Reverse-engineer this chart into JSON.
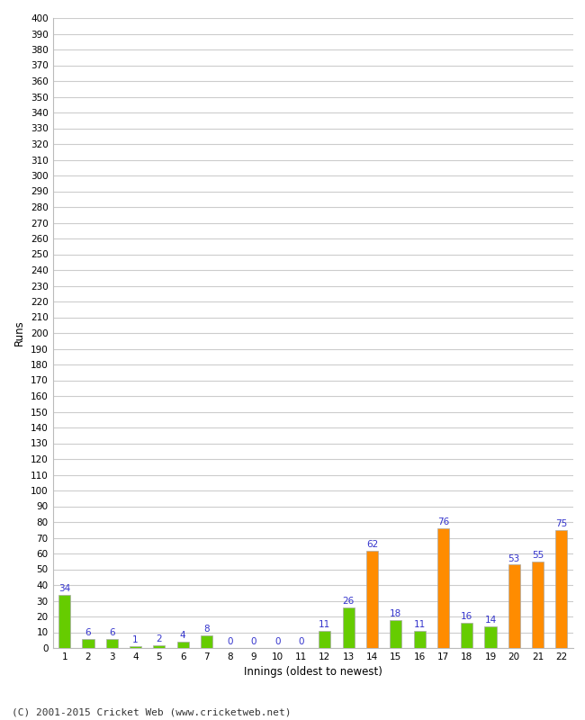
{
  "innings": [
    1,
    2,
    3,
    4,
    5,
    6,
    7,
    8,
    9,
    10,
    11,
    12,
    13,
    14,
    15,
    16,
    17,
    18,
    19,
    20,
    21,
    22
  ],
  "values": [
    34,
    6,
    6,
    1,
    2,
    4,
    8,
    0,
    0,
    0,
    0,
    11,
    26,
    62,
    18,
    11,
    76,
    16,
    14,
    53,
    55,
    75
  ],
  "colors": [
    "#66cc00",
    "#66cc00",
    "#66cc00",
    "#66cc00",
    "#66cc00",
    "#66cc00",
    "#66cc00",
    "#66cc00",
    "#66cc00",
    "#66cc00",
    "#66cc00",
    "#66cc00",
    "#66cc00",
    "#ff8c00",
    "#66cc00",
    "#66cc00",
    "#ff8c00",
    "#66cc00",
    "#66cc00",
    "#ff8c00",
    "#ff8c00",
    "#ff8c00"
  ],
  "xlabel": "Innings (oldest to newest)",
  "ylabel": "Runs",
  "ylim": [
    0,
    400
  ],
  "ytick_step": 10,
  "footer": "(C) 2001-2015 Cricket Web (www.cricketweb.net)",
  "label_color": "#3333cc",
  "bar_edge_color": "#aaaaaa",
  "background_color": "#ffffff",
  "grid_color": "#cccccc",
  "bar_width": 0.5,
  "font_size_ticks": 7.5,
  "font_size_axis_label": 8.5,
  "font_size_bar_label": 7.5,
  "font_size_footer": 8
}
